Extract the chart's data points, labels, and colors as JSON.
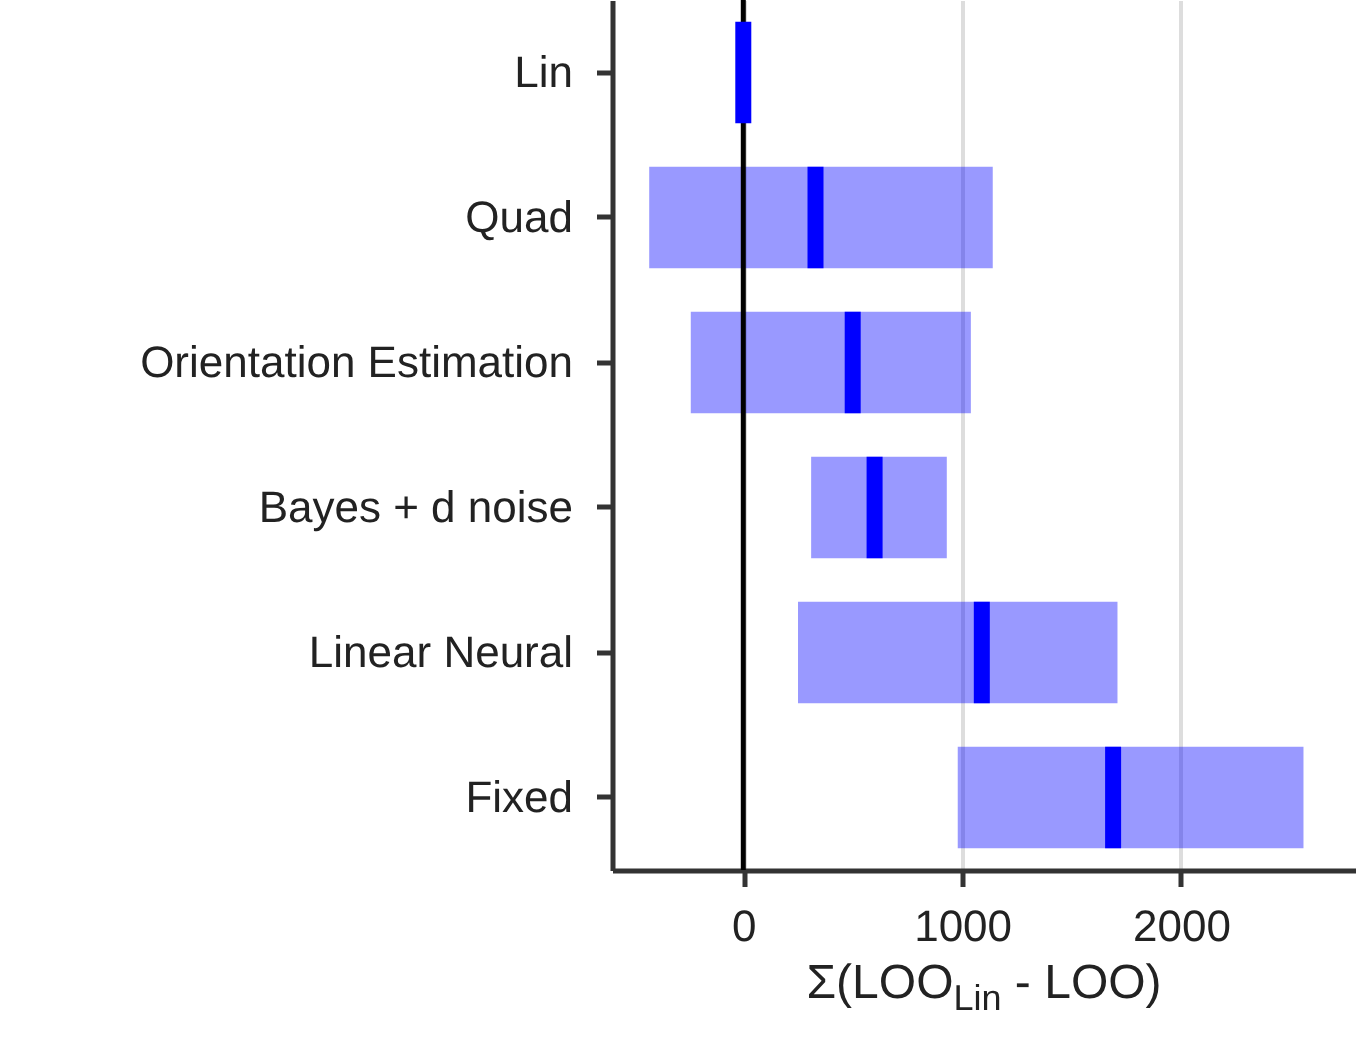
{
  "chart_data": {
    "type": "box",
    "orientation": "horizontal",
    "xlabel": "Σ(LOO$_{Lin}$ - LOO)",
    "categories": [
      "Lin",
      "Quad",
      "Orientation Estimation",
      "Bayes + d noise",
      "Linear Neural",
      "Fixed"
    ],
    "xlim": [
      -600,
      2800
    ],
    "xticks": [
      0,
      1000,
      2000
    ],
    "grid": "x",
    "ref_lines": [
      {
        "axis": "x",
        "value": 0,
        "color": "#000000"
      }
    ],
    "series": [
      {
        "color": "#0000ff",
        "boxes": [
          {
            "low": 0,
            "q1": 0,
            "median": 0,
            "q3": 0,
            "high": 0
          },
          {
            "low": -430,
            "q1": -430,
            "median": 330,
            "q3": 1140,
            "high": 1140
          },
          {
            "low": -240,
            "q1": -240,
            "median": 500,
            "q3": 1040,
            "high": 1040
          },
          {
            "low": 310,
            "q1": 310,
            "median": 600,
            "q3": 930,
            "high": 930
          },
          {
            "low": 250,
            "q1": 250,
            "median": 1090,
            "q3": 1710,
            "high": 1710
          },
          {
            "low": 980,
            "q1": 980,
            "median": 1690,
            "q3": 2560,
            "high": 2560
          }
        ]
      }
    ]
  }
}
